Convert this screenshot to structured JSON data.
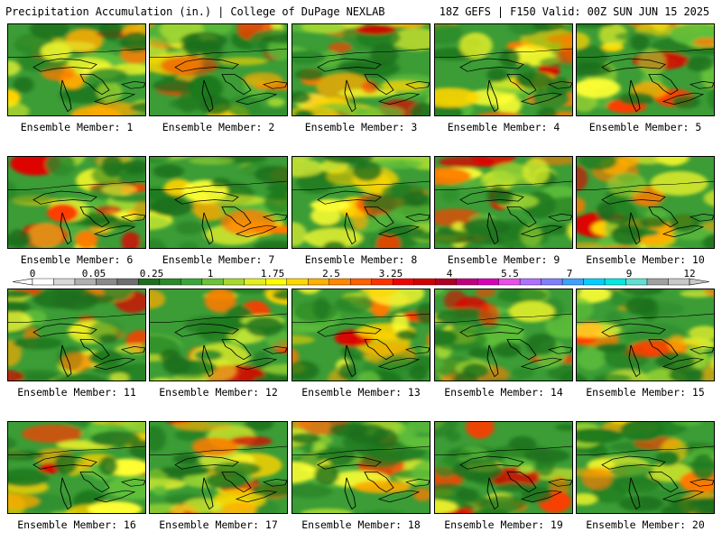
{
  "header": {
    "title_left": "Precipitation Accumulation (in.) | College of DuPage NEXLAB",
    "title_right": "18Z GEFS | F150 Valid: 00Z SUN JUN 15 2025"
  },
  "panels": [
    {
      "label": "Ensemble Member: 1",
      "seed": 11
    },
    {
      "label": "Ensemble Member: 2",
      "seed": 23
    },
    {
      "label": "Ensemble Member: 3",
      "seed": 37
    },
    {
      "label": "Ensemble Member: 4",
      "seed": 41
    },
    {
      "label": "Ensemble Member: 5",
      "seed": 53
    },
    {
      "label": "Ensemble Member: 6",
      "seed": 67
    },
    {
      "label": "Ensemble Member: 7",
      "seed": 71
    },
    {
      "label": "Ensemble Member: 8",
      "seed": 83
    },
    {
      "label": "Ensemble Member: 9",
      "seed": 97
    },
    {
      "label": "Ensemble Member: 10",
      "seed": 101
    },
    {
      "label": "Ensemble Member: 11",
      "seed": 113
    },
    {
      "label": "Ensemble Member: 12",
      "seed": 127
    },
    {
      "label": "Ensemble Member: 13",
      "seed": 131
    },
    {
      "label": "Ensemble Member: 14",
      "seed": 149
    },
    {
      "label": "Ensemble Member: 15",
      "seed": 151
    },
    {
      "label": "Ensemble Member: 16",
      "seed": 163
    },
    {
      "label": "Ensemble Member: 17",
      "seed": 173
    },
    {
      "label": "Ensemble Member: 18",
      "seed": 181
    },
    {
      "label": "Ensemble Member: 19",
      "seed": 191
    },
    {
      "label": "Ensemble Member: 20",
      "seed": 199
    }
  ],
  "colorbar": {
    "labels": [
      "0",
      "0.05",
      "0.25",
      "1",
      "1.75",
      "2.5",
      "3.25",
      "4",
      "5.5",
      "7",
      "9",
      "12"
    ],
    "colors": [
      "#ffffff",
      "#d8d8d8",
      "#b0b0b0",
      "#8a8a8a",
      "#6e6e6e",
      "#1e6e1e",
      "#2a8a2a",
      "#3aa63a",
      "#6cc238",
      "#a6d92e",
      "#e4f01e",
      "#ffff00",
      "#ffd800",
      "#ffb000",
      "#ff8800",
      "#ff6000",
      "#ff3000",
      "#f00000",
      "#d00000",
      "#b00020",
      "#c0007a",
      "#d800b8",
      "#e850e8",
      "#b070ff",
      "#7f7fff",
      "#3fa0ff",
      "#00d0ff",
      "#00e8e0",
      "#60e0d0",
      "#a0a0a0",
      "#c8c8c8"
    ]
  }
}
